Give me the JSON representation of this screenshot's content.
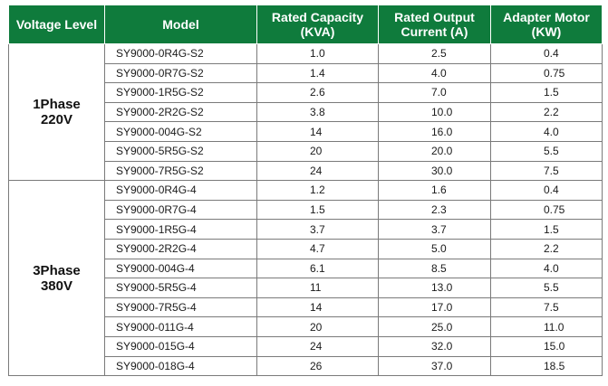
{
  "headers": {
    "voltage_level": "Voltage Level",
    "model": "Model",
    "rated_capacity_line1": "Rated Capacity",
    "rated_capacity_line2": "(KVA)",
    "rated_current_line1": "Rated Output",
    "rated_current_line2": "Current (A)",
    "adapter_motor_line1": "Adapter Motor",
    "adapter_motor_line2": "(KW)"
  },
  "groups": [
    {
      "level_line1": "1Phase",
      "level_line2": "220V",
      "rows": [
        {
          "model": "SY9000-0R4G-S2",
          "capacity": "1.0",
          "current": "2.5",
          "motor": "0.4"
        },
        {
          "model": "SY9000-0R7G-S2",
          "capacity": "1.4",
          "current": "4.0",
          "motor": "0.75"
        },
        {
          "model": "SY9000-1R5G-S2",
          "capacity": "2.6",
          "current": "7.0",
          "motor": "1.5"
        },
        {
          "model": "SY9000-2R2G-S2",
          "capacity": "3.8",
          "current": "10.0",
          "motor": "2.2"
        },
        {
          "model": "SY9000-004G-S2",
          "capacity": "14",
          "current": "16.0",
          "motor": "4.0"
        },
        {
          "model": "SY9000-5R5G-S2",
          "capacity": "20",
          "current": "20.0",
          "motor": "5.5"
        },
        {
          "model": "SY9000-7R5G-S2",
          "capacity": "24",
          "current": "30.0",
          "motor": "7.5"
        }
      ]
    },
    {
      "level_line1": "3Phase",
      "level_line2": "380V",
      "rows": [
        {
          "model": "SY9000-0R4G-4",
          "capacity": "1.2",
          "current": "1.6",
          "motor": "0.4"
        },
        {
          "model": "SY9000-0R7G-4",
          "capacity": "1.5",
          "current": "2.3",
          "motor": "0.75"
        },
        {
          "model": "SY9000-1R5G-4",
          "capacity": "3.7",
          "current": "3.7",
          "motor": "1.5"
        },
        {
          "model": "SY9000-2R2G-4",
          "capacity": "4.7",
          "current": "5.0",
          "motor": "2.2"
        },
        {
          "model": "SY9000-004G-4",
          "capacity": "6.1",
          "current": "8.5",
          "motor": "4.0"
        },
        {
          "model": "SY9000-5R5G-4",
          "capacity": "11",
          "current": "13.0",
          "motor": "5.5"
        },
        {
          "model": "SY9000-7R5G-4",
          "capacity": "14",
          "current": "17.0",
          "motor": "7.5"
        },
        {
          "model": "SY9000-011G-4",
          "capacity": "20",
          "current": "25.0",
          "motor": "11.0"
        },
        {
          "model": "SY9000-015G-4",
          "capacity": "24",
          "current": "32.0",
          "motor": "15.0"
        },
        {
          "model": "SY9000-018G-4",
          "capacity": "26",
          "current": "37.0",
          "motor": "18.5"
        }
      ]
    }
  ]
}
